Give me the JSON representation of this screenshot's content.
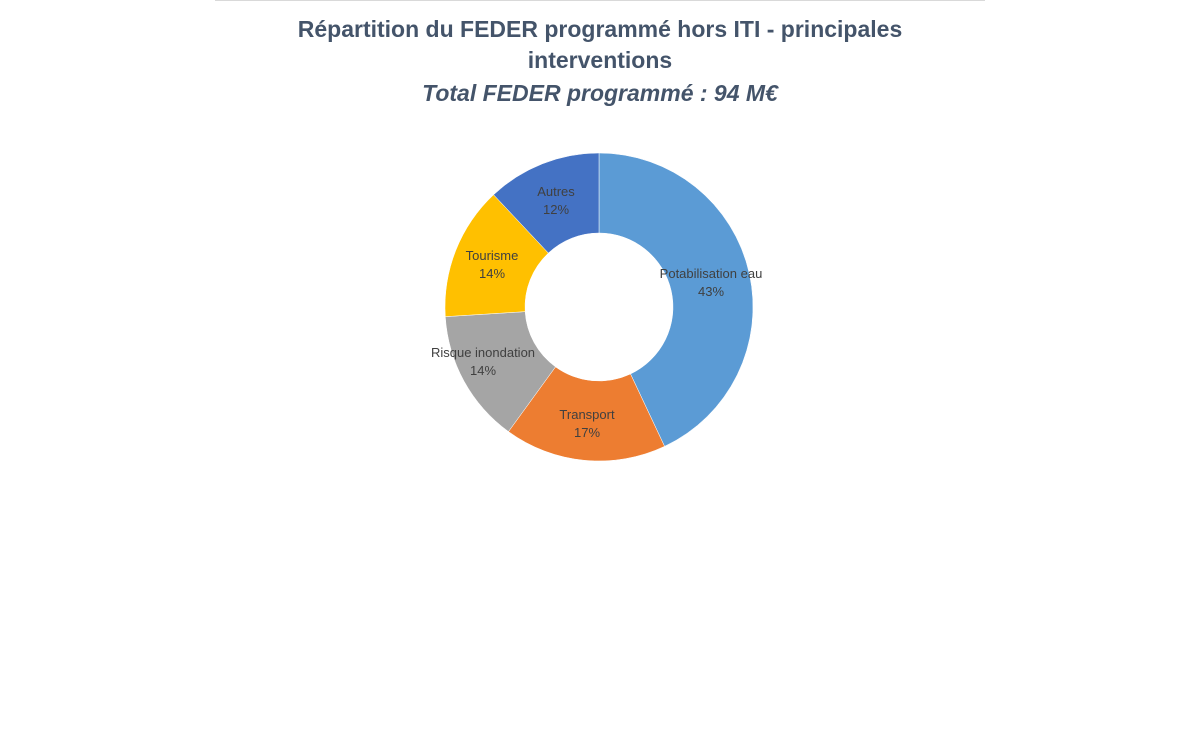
{
  "chart_data": {
    "type": "pie",
    "variant": "donut",
    "title": "Répartition du FEDER programmé hors ITI - principales interventions",
    "title_lines": [
      "Répartition du FEDER programmé hors ITI - principales",
      "interventions"
    ],
    "subtitle": "Total FEDER programmé :  94 M€",
    "slices": [
      {
        "name": "Potabilisation eau",
        "value": 43,
        "label": "43%",
        "color": "#5b9bd5"
      },
      {
        "name": "Transport",
        "value": 17,
        "label": "17%",
        "color": "#ed7d31"
      },
      {
        "name": "Risque inondation",
        "value": 14,
        "label": "14%",
        "color": "#a5a5a5"
      },
      {
        "name": "Tourisme",
        "value": 14,
        "label": "14%",
        "color": "#ffc000"
      },
      {
        "name": "Autres",
        "value": 12,
        "label": "12%",
        "color": "#4472c4"
      }
    ],
    "start_angle": "12 o'clock",
    "direction": "clockwise",
    "legend": "none"
  }
}
